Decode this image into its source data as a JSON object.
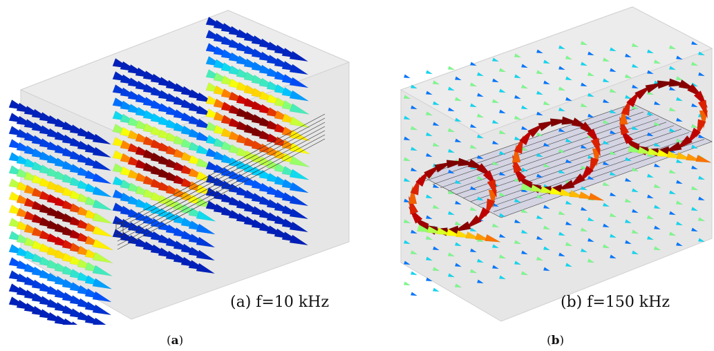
{
  "panel_a": {
    "label": "(a) f=10 kHz",
    "caption_letter": "a"
  },
  "panel_b": {
    "label": "(b) f=150 kHz",
    "caption_letter": "b"
  },
  "colors": {
    "box_face": "#e6e6e6",
    "box_edge": "#d0d0d0",
    "colormap": [
      "#00008f",
      "#0055ff",
      "#00d4ff",
      "#80ff80",
      "#ffff00",
      "#ff8000",
      "#d00000",
      "#7a0000"
    ]
  }
}
